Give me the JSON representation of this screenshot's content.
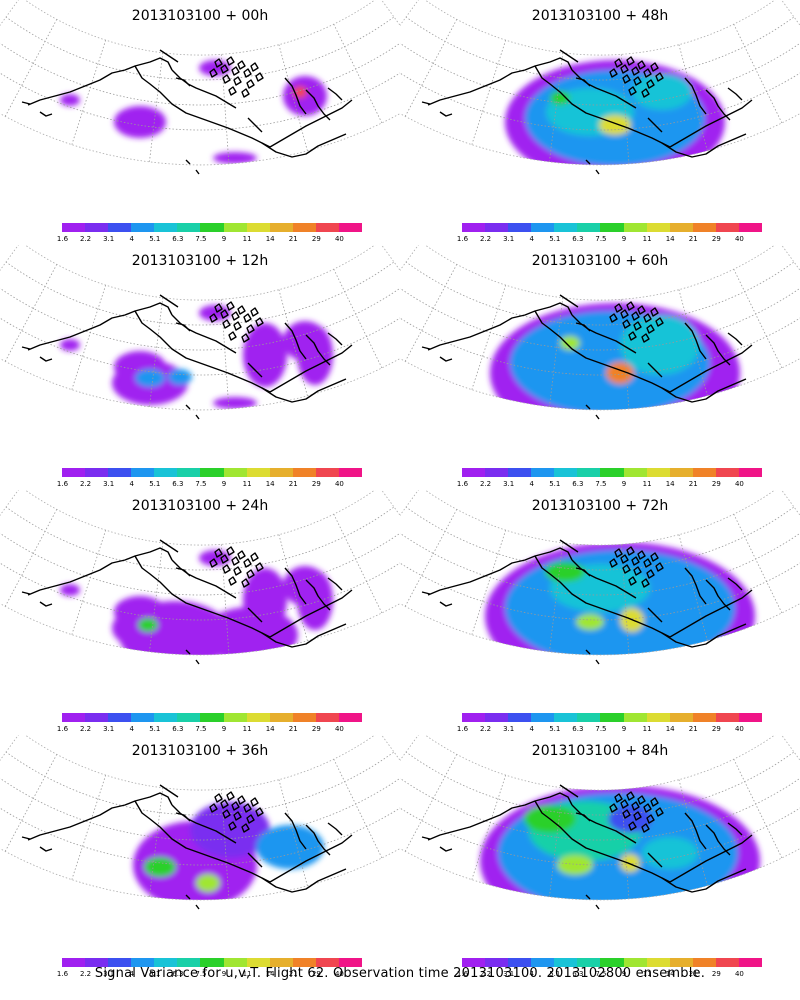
{
  "caption": "Signal Variance for u,v,T. Flight 62. Observation time 2013103100. 2013102800 ensemble.",
  "colorbar": {
    "colors": [
      "#a020f0",
      "#7a2df0",
      "#3c50f0",
      "#1e96f0",
      "#19c3d7",
      "#19d0a8",
      "#2ad02a",
      "#a0e632",
      "#dcdc32",
      "#e6af2d",
      "#f08228",
      "#f04650",
      "#f01487"
    ],
    "labels": [
      "1.6",
      "2.2",
      "3.1",
      "4",
      "5.1",
      "6.3",
      "7.5",
      "9",
      "11",
      "14",
      "21",
      "29",
      "40"
    ]
  },
  "panels": [
    {
      "title": "2013103100 + 00h",
      "intensity": 1
    },
    {
      "title": "2013103100 + 48h",
      "intensity": 5
    },
    {
      "title": "2013103100 + 12h",
      "intensity": 2
    },
    {
      "title": "2013103100 + 60h",
      "intensity": 6
    },
    {
      "title": "2013103100 + 24h",
      "intensity": 3
    },
    {
      "title": "2013103100 + 72h",
      "intensity": 7
    },
    {
      "title": "2013103100 + 36h",
      "intensity": 4
    },
    {
      "title": "2013103100 + 84h",
      "intensity": 8
    }
  ]
}
